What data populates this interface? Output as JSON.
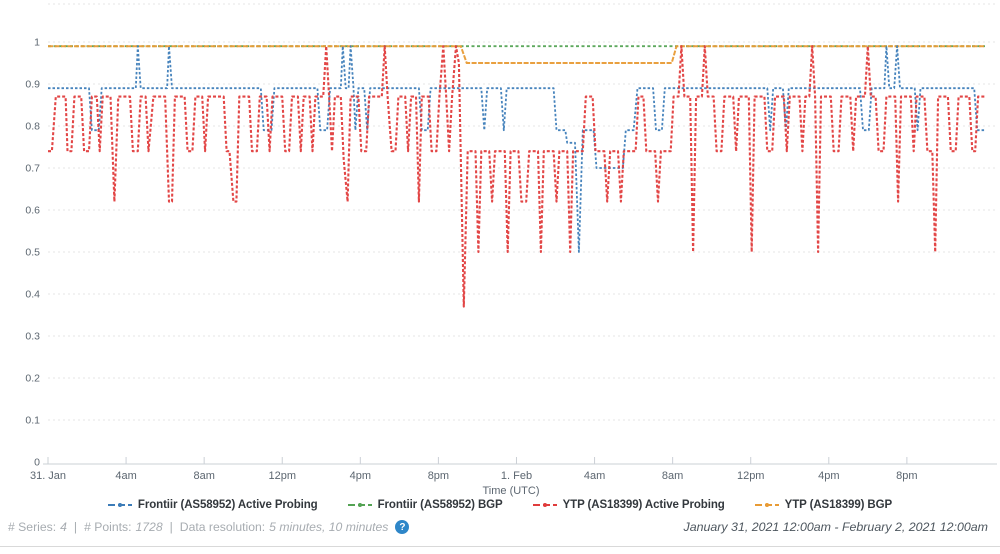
{
  "chart_data": {
    "type": "line",
    "title": "",
    "xlabel": "Time (UTC)",
    "ylabel": "",
    "x_unit": "hours since 2021-01-31 00:00 UTC",
    "xlim": [
      0,
      48
    ],
    "ylim": [
      0,
      1.1
    ],
    "grid": true,
    "y_ticks": [
      "1",
      "0.9",
      "0.8",
      "0.7",
      "0.6",
      "0.5",
      "0.4",
      "0.3",
      "0.2",
      "0.1",
      "0"
    ],
    "y_tick_values": [
      1,
      0.9,
      0.8,
      0.7,
      0.6,
      0.5,
      0.4,
      0.3,
      0.2,
      0.1,
      0
    ],
    "x_tick_hours": [
      0,
      4,
      8,
      12,
      16,
      20,
      24,
      28,
      32,
      36,
      40,
      44
    ],
    "x_tick_labels": [
      "31. Jan",
      "4am",
      "8am",
      "12pm",
      "4pm",
      "8pm",
      "1. Feb",
      "4am",
      "8am",
      "12pm",
      "4pm",
      "8pm"
    ],
    "legend_position": "bottom",
    "series": [
      {
        "name": "Frontiir (AS58952) BGP",
        "color": "#54a354",
        "dash": "3 2.5",
        "width": 1.8,
        "points": [
          [
            0,
            0.99
          ],
          [
            48,
            0.99
          ]
        ]
      },
      {
        "name": "YTP (AS18399) BGP",
        "color": "#e89b35",
        "dash": "5 1.5",
        "width": 2,
        "points": [
          [
            0,
            0.99
          ],
          [
            21.15,
            0.99
          ],
          [
            21.45,
            0.95
          ],
          [
            31.95,
            0.95
          ],
          [
            32.2,
            0.99
          ],
          [
            48,
            0.99
          ]
        ]
      },
      {
        "name": "Frontiir (AS58952) Active Probing",
        "color": "#3c7cb8",
        "dash": "2.5 2",
        "width": 1.8,
        "points": [
          [
            0,
            0.89
          ],
          [
            2.1,
            0.89
          ],
          [
            2.25,
            0.79
          ],
          [
            2.6,
            0.79
          ],
          [
            2.75,
            0.89
          ],
          [
            4.5,
            0.89
          ],
          [
            4.6,
            0.99
          ],
          [
            4.75,
            0.89
          ],
          [
            6.1,
            0.89
          ],
          [
            6.2,
            0.99
          ],
          [
            6.35,
            0.89
          ],
          [
            10.9,
            0.89
          ],
          [
            11.05,
            0.79
          ],
          [
            11.45,
            0.79
          ],
          [
            11.6,
            0.89
          ],
          [
            13.8,
            0.89
          ],
          [
            13.95,
            0.79
          ],
          [
            14.3,
            0.79
          ],
          [
            14.45,
            0.89
          ],
          [
            15.0,
            0.89
          ],
          [
            15.1,
            0.99
          ],
          [
            15.25,
            0.89
          ],
          [
            15.4,
            0.89
          ],
          [
            15.5,
            0.99
          ],
          [
            15.65,
            0.89
          ],
          [
            15.75,
            0.79
          ],
          [
            15.9,
            0.89
          ],
          [
            16.2,
            0.89
          ],
          [
            16.35,
            0.79
          ],
          [
            16.5,
            0.89
          ],
          [
            19.0,
            0.89
          ],
          [
            19.15,
            0.79
          ],
          [
            19.45,
            0.79
          ],
          [
            19.6,
            0.89
          ],
          [
            22.2,
            0.89
          ],
          [
            22.35,
            0.79
          ],
          [
            22.5,
            0.89
          ],
          [
            23.2,
            0.89
          ],
          [
            23.35,
            0.79
          ],
          [
            23.5,
            0.89
          ],
          [
            25.9,
            0.89
          ],
          [
            26.05,
            0.79
          ],
          [
            26.5,
            0.79
          ],
          [
            26.6,
            0.76
          ],
          [
            27.0,
            0.76
          ],
          [
            27.2,
            0.5
          ],
          [
            27.4,
            0.79
          ],
          [
            27.95,
            0.79
          ],
          [
            28.1,
            0.7
          ],
          [
            29.45,
            0.7
          ],
          [
            29.6,
            0.79
          ],
          [
            30.0,
            0.79
          ],
          [
            30.2,
            0.89
          ],
          [
            31.0,
            0.89
          ],
          [
            31.15,
            0.79
          ],
          [
            31.45,
            0.79
          ],
          [
            31.6,
            0.89
          ],
          [
            36.85,
            0.89
          ],
          [
            37.0,
            0.79
          ],
          [
            37.15,
            0.89
          ],
          [
            37.65,
            0.89
          ],
          [
            37.8,
            0.79
          ],
          [
            37.95,
            0.89
          ],
          [
            41.6,
            0.89
          ],
          [
            41.75,
            0.79
          ],
          [
            42.05,
            0.79
          ],
          [
            42.2,
            0.89
          ],
          [
            42.85,
            0.89
          ],
          [
            42.95,
            0.99
          ],
          [
            43.1,
            0.89
          ],
          [
            43.35,
            0.89
          ],
          [
            43.5,
            0.99
          ],
          [
            43.65,
            0.89
          ],
          [
            44.4,
            0.89
          ],
          [
            44.55,
            0.79
          ],
          [
            44.7,
            0.89
          ],
          [
            47.45,
            0.89
          ],
          [
            47.6,
            0.79
          ],
          [
            48,
            0.79
          ]
        ]
      },
      {
        "name": "YTP (AS18399) Active Probing",
        "color": "#e03c3c",
        "dash": "3 2",
        "width": 2.1,
        "points": [
          [
            0,
            0.74
          ],
          [
            0.2,
            0.74
          ],
          [
            0.4,
            0.87
          ],
          [
            0.9,
            0.87
          ],
          [
            1.0,
            0.74
          ],
          [
            1.2,
            0.74
          ],
          [
            1.35,
            0.87
          ],
          [
            1.7,
            0.87
          ],
          [
            1.85,
            0.74
          ],
          [
            2.1,
            0.74
          ],
          [
            2.25,
            0.87
          ],
          [
            2.5,
            0.87
          ],
          [
            2.65,
            0.74
          ],
          [
            2.8,
            0.87
          ],
          [
            3.2,
            0.87
          ],
          [
            3.4,
            0.62
          ],
          [
            3.6,
            0.87
          ],
          [
            4.2,
            0.87
          ],
          [
            4.35,
            0.74
          ],
          [
            4.6,
            0.74
          ],
          [
            4.75,
            0.87
          ],
          [
            5.0,
            0.87
          ],
          [
            5.15,
            0.74
          ],
          [
            5.4,
            0.87
          ],
          [
            6.0,
            0.87
          ],
          [
            6.2,
            0.62
          ],
          [
            6.35,
            0.62
          ],
          [
            6.5,
            0.87
          ],
          [
            7.0,
            0.87
          ],
          [
            7.15,
            0.74
          ],
          [
            7.4,
            0.74
          ],
          [
            7.55,
            0.87
          ],
          [
            7.9,
            0.87
          ],
          [
            8.05,
            0.74
          ],
          [
            8.2,
            0.87
          ],
          [
            9.0,
            0.87
          ],
          [
            9.15,
            0.74
          ],
          [
            9.3,
            0.74
          ],
          [
            9.5,
            0.62
          ],
          [
            9.65,
            0.62
          ],
          [
            9.8,
            0.87
          ],
          [
            10.3,
            0.87
          ],
          [
            10.45,
            0.74
          ],
          [
            10.7,
            0.74
          ],
          [
            10.85,
            0.87
          ],
          [
            11.2,
            0.87
          ],
          [
            11.35,
            0.74
          ],
          [
            11.5,
            0.87
          ],
          [
            12.0,
            0.87
          ],
          [
            12.15,
            0.74
          ],
          [
            12.35,
            0.74
          ],
          [
            12.5,
            0.87
          ],
          [
            12.8,
            0.87
          ],
          [
            12.95,
            0.74
          ],
          [
            13.1,
            0.87
          ],
          [
            13.4,
            0.87
          ],
          [
            13.55,
            0.74
          ],
          [
            13.7,
            0.87
          ],
          [
            14.1,
            0.87
          ],
          [
            14.25,
            0.99
          ],
          [
            14.4,
            0.87
          ],
          [
            14.55,
            0.74
          ],
          [
            14.7,
            0.87
          ],
          [
            15.0,
            0.87
          ],
          [
            15.15,
            0.72
          ],
          [
            15.35,
            0.62
          ],
          [
            15.5,
            0.87
          ],
          [
            15.9,
            0.87
          ],
          [
            16.05,
            0.74
          ],
          [
            16.3,
            0.74
          ],
          [
            16.45,
            0.87
          ],
          [
            17.1,
            0.87
          ],
          [
            17.25,
            0.99
          ],
          [
            17.4,
            0.87
          ],
          [
            17.6,
            0.74
          ],
          [
            17.8,
            0.74
          ],
          [
            17.95,
            0.87
          ],
          [
            18.3,
            0.87
          ],
          [
            18.45,
            0.74
          ],
          [
            18.6,
            0.87
          ],
          [
            18.85,
            0.87
          ],
          [
            19.0,
            0.62
          ],
          [
            19.15,
            0.87
          ],
          [
            19.5,
            0.87
          ],
          [
            19.65,
            0.74
          ],
          [
            19.9,
            0.74
          ],
          [
            20.05,
            0.87
          ],
          [
            20.25,
            0.99
          ],
          [
            20.4,
            0.87
          ],
          [
            20.55,
            0.74
          ],
          [
            20.7,
            0.87
          ],
          [
            20.9,
            0.99
          ],
          [
            21.05,
            0.95
          ],
          [
            21.3,
            0.37
          ],
          [
            21.5,
            0.74
          ],
          [
            21.9,
            0.74
          ],
          [
            22.05,
            0.5
          ],
          [
            22.2,
            0.74
          ],
          [
            22.6,
            0.74
          ],
          [
            22.75,
            0.62
          ],
          [
            22.9,
            0.74
          ],
          [
            23.4,
            0.74
          ],
          [
            23.55,
            0.5
          ],
          [
            23.7,
            0.74
          ],
          [
            24.1,
            0.74
          ],
          [
            24.25,
            0.62
          ],
          [
            24.5,
            0.62
          ],
          [
            24.65,
            0.74
          ],
          [
            25.1,
            0.74
          ],
          [
            25.25,
            0.5
          ],
          [
            25.4,
            0.74
          ],
          [
            25.9,
            0.74
          ],
          [
            26.05,
            0.62
          ],
          [
            26.2,
            0.74
          ],
          [
            26.6,
            0.74
          ],
          [
            26.75,
            0.5
          ],
          [
            26.9,
            0.74
          ],
          [
            27.4,
            0.74
          ],
          [
            27.55,
            0.87
          ],
          [
            27.9,
            0.87
          ],
          [
            28.05,
            0.74
          ],
          [
            28.5,
            0.74
          ],
          [
            28.65,
            0.62
          ],
          [
            28.8,
            0.74
          ],
          [
            29.2,
            0.74
          ],
          [
            29.35,
            0.62
          ],
          [
            29.5,
            0.74
          ],
          [
            30.1,
            0.74
          ],
          [
            30.25,
            0.87
          ],
          [
            30.5,
            0.87
          ],
          [
            30.65,
            0.74
          ],
          [
            31.1,
            0.74
          ],
          [
            31.25,
            0.62
          ],
          [
            31.4,
            0.74
          ],
          [
            31.9,
            0.74
          ],
          [
            32.05,
            0.87
          ],
          [
            32.3,
            0.87
          ],
          [
            32.45,
            0.99
          ],
          [
            32.6,
            0.87
          ],
          [
            32.9,
            0.87
          ],
          [
            33.05,
            0.5
          ],
          [
            33.2,
            0.87
          ],
          [
            33.5,
            0.87
          ],
          [
            33.65,
            0.99
          ],
          [
            33.8,
            0.87
          ],
          [
            34.1,
            0.87
          ],
          [
            34.25,
            0.74
          ],
          [
            34.5,
            0.74
          ],
          [
            34.65,
            0.87
          ],
          [
            35.1,
            0.87
          ],
          [
            35.25,
            0.74
          ],
          [
            35.4,
            0.87
          ],
          [
            35.9,
            0.87
          ],
          [
            36.05,
            0.5
          ],
          [
            36.2,
            0.87
          ],
          [
            36.7,
            0.87
          ],
          [
            36.85,
            0.74
          ],
          [
            37.1,
            0.74
          ],
          [
            37.25,
            0.87
          ],
          [
            37.7,
            0.87
          ],
          [
            37.85,
            0.74
          ],
          [
            38.0,
            0.87
          ],
          [
            38.5,
            0.87
          ],
          [
            38.65,
            0.74
          ],
          [
            38.8,
            0.87
          ],
          [
            39.0,
            0.87
          ],
          [
            39.15,
            0.99
          ],
          [
            39.3,
            0.87
          ],
          [
            39.45,
            0.5
          ],
          [
            39.6,
            0.87
          ],
          [
            40.1,
            0.87
          ],
          [
            40.25,
            0.74
          ],
          [
            40.5,
            0.74
          ],
          [
            40.65,
            0.87
          ],
          [
            41.1,
            0.87
          ],
          [
            41.25,
            0.74
          ],
          [
            41.4,
            0.87
          ],
          [
            41.85,
            0.87
          ],
          [
            42.0,
            0.99
          ],
          [
            42.15,
            0.87
          ],
          [
            42.4,
            0.87
          ],
          [
            42.55,
            0.74
          ],
          [
            42.8,
            0.74
          ],
          [
            42.95,
            0.87
          ],
          [
            43.4,
            0.87
          ],
          [
            43.55,
            0.62
          ],
          [
            43.7,
            0.87
          ],
          [
            44.2,
            0.87
          ],
          [
            44.35,
            0.74
          ],
          [
            44.5,
            0.87
          ],
          [
            44.9,
            0.87
          ],
          [
            45.05,
            0.74
          ],
          [
            45.3,
            0.74
          ],
          [
            45.45,
            0.5
          ],
          [
            45.6,
            0.87
          ],
          [
            46.1,
            0.87
          ],
          [
            46.25,
            0.74
          ],
          [
            46.5,
            0.74
          ],
          [
            46.65,
            0.87
          ],
          [
            47.2,
            0.87
          ],
          [
            47.35,
            0.74
          ],
          [
            47.5,
            0.74
          ],
          [
            47.65,
            0.87
          ],
          [
            48,
            0.87
          ]
        ]
      }
    ],
    "legend_order": [
      "Frontiir (AS58952) Active Probing",
      "Frontiir (AS58952) BGP",
      "YTP (AS18399) Active Probing",
      "YTP (AS18399) BGP"
    ]
  },
  "footer": {
    "series_label": "# Series:",
    "series_value": "4",
    "sep1": "|",
    "points_label": "# Points:",
    "points_value": "1728",
    "sep2": "|",
    "resolution_label": "Data resolution:",
    "resolution_value": "5 minutes, 10 minutes",
    "info_glyph": "?",
    "date_range": "January 31, 2021 12:00am - February 2, 2021 12:00am"
  }
}
